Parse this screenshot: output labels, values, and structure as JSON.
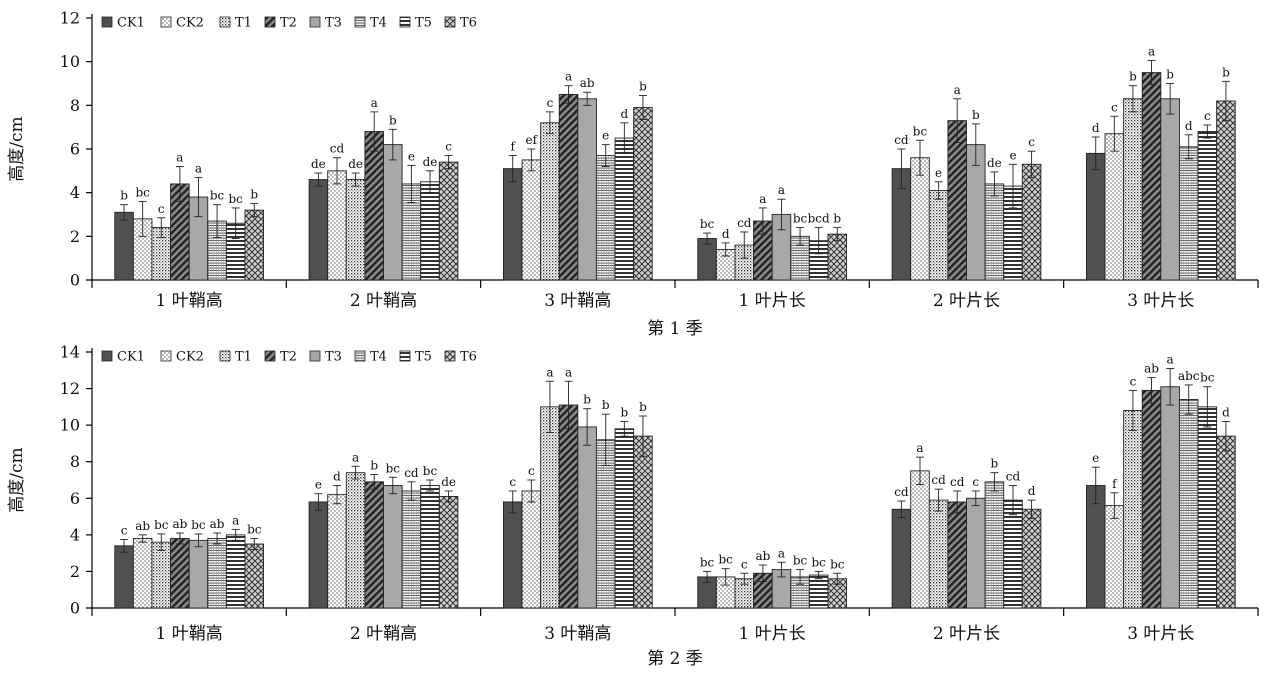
{
  "chart_data": [
    {
      "type": "bar",
      "xlabel": "第 1 季",
      "ylabel": "高度/cm",
      "ylim": [
        0,
        12
      ],
      "yticks": [
        0,
        2,
        4,
        6,
        8,
        10,
        12
      ],
      "legend": "top-left",
      "categories": [
        "1 叶鞘高",
        "2 叶鞘高",
        "3 叶鞘高",
        "1 叶片长",
        "2 叶片长",
        "3 叶片长"
      ],
      "series": [
        {
          "name": "CK1",
          "pattern": "solid-dark",
          "values": [
            3.1,
            4.6,
            5.1,
            1.9,
            5.1,
            5.8
          ],
          "errors": [
            0.35,
            0.3,
            0.6,
            0.25,
            0.9,
            0.75
          ],
          "labels": [
            "b",
            "de",
            "f",
            "bc",
            "cd",
            "d"
          ]
        },
        {
          "name": "CK2",
          "pattern": "dots",
          "values": [
            2.8,
            5.0,
            5.5,
            1.4,
            5.6,
            6.7
          ],
          "errors": [
            0.8,
            0.6,
            0.5,
            0.3,
            0.8,
            0.8
          ],
          "labels": [
            "bc",
            "cd",
            "ef",
            "d",
            "bc",
            "c"
          ]
        },
        {
          "name": "T1",
          "pattern": "dots-dense",
          "values": [
            2.4,
            4.6,
            7.2,
            1.6,
            4.1,
            8.3
          ],
          "errors": [
            0.45,
            0.3,
            0.5,
            0.6,
            0.4,
            0.6
          ],
          "labels": [
            "c",
            "de",
            "c",
            "cd",
            "e",
            "b"
          ]
        },
        {
          "name": "T2",
          "pattern": "diagonal",
          "values": [
            4.4,
            6.8,
            8.5,
            2.7,
            7.3,
            9.5
          ],
          "errors": [
            0.8,
            0.9,
            0.4,
            0.6,
            1.0,
            0.55
          ],
          "labels": [
            "a",
            "a",
            "a",
            "a",
            "a",
            "a"
          ]
        },
        {
          "name": "T3",
          "pattern": "solid-light",
          "values": [
            3.8,
            6.2,
            8.3,
            3.0,
            6.2,
            8.3
          ],
          "errors": [
            0.9,
            0.7,
            0.3,
            0.7,
            0.95,
            0.7
          ],
          "labels": [
            "a",
            "b",
            "ab",
            "a",
            "b",
            "b"
          ]
        },
        {
          "name": "T4",
          "pattern": "grid",
          "values": [
            2.7,
            4.4,
            5.7,
            2.0,
            4.4,
            6.1
          ],
          "errors": [
            0.75,
            0.85,
            0.5,
            0.4,
            0.55,
            0.55
          ],
          "labels": [
            "bc",
            "e",
            "e",
            "bc",
            "de",
            "d"
          ]
        },
        {
          "name": "T5",
          "pattern": "horizontal",
          "values": [
            2.6,
            4.5,
            6.5,
            1.8,
            4.3,
            6.8
          ],
          "errors": [
            0.7,
            0.5,
            0.7,
            0.6,
            1.0,
            0.3
          ],
          "labels": [
            "bc",
            "de",
            "d",
            "bcd",
            "e",
            "c"
          ]
        },
        {
          "name": "T6",
          "pattern": "cross",
          "values": [
            3.2,
            5.4,
            7.9,
            2.1,
            5.3,
            8.2
          ],
          "errors": [
            0.3,
            0.3,
            0.55,
            0.3,
            0.6,
            0.9
          ],
          "labels": [
            "b",
            "c",
            "b",
            "b",
            "c",
            "b"
          ]
        }
      ]
    },
    {
      "type": "bar",
      "xlabel": "第 2 季",
      "ylabel": "高度/cm",
      "ylim": [
        0,
        14
      ],
      "yticks": [
        0,
        2,
        4,
        6,
        8,
        10,
        12,
        14
      ],
      "legend": "top-left",
      "categories": [
        "1 叶鞘高",
        "2 叶鞘高",
        "3 叶鞘高",
        "1 叶片长",
        "2 叶片长",
        "3 叶片长"
      ],
      "series": [
        {
          "name": "CK1",
          "pattern": "solid-dark",
          "values": [
            3.4,
            5.8,
            5.8,
            1.7,
            5.4,
            6.7
          ],
          "errors": [
            0.35,
            0.45,
            0.6,
            0.3,
            0.45,
            1.0
          ],
          "labels": [
            "c",
            "e",
            "c",
            "bc",
            "cd",
            "e"
          ]
        },
        {
          "name": "CK2",
          "pattern": "dots",
          "values": [
            3.8,
            6.2,
            6.4,
            1.7,
            7.5,
            5.6
          ],
          "errors": [
            0.2,
            0.5,
            0.6,
            0.45,
            0.75,
            0.7
          ],
          "labels": [
            "ab",
            "d",
            "c",
            "bc",
            "a",
            "f"
          ]
        },
        {
          "name": "T1",
          "pattern": "dots-dense",
          "values": [
            3.6,
            7.4,
            11.0,
            1.6,
            5.9,
            10.8
          ],
          "errors": [
            0.45,
            0.35,
            1.4,
            0.3,
            0.6,
            1.1
          ],
          "labels": [
            "bc",
            "a",
            "a",
            "c",
            "cd",
            "c"
          ]
        },
        {
          "name": "T2",
          "pattern": "diagonal",
          "values": [
            3.8,
            6.9,
            11.1,
            1.9,
            5.8,
            11.9
          ],
          "errors": [
            0.3,
            0.4,
            1.3,
            0.45,
            0.6,
            0.7
          ],
          "labels": [
            "ab",
            "b",
            "a",
            "ab",
            "cd",
            "ab"
          ]
        },
        {
          "name": "T3",
          "pattern": "solid-light",
          "values": [
            3.7,
            6.7,
            9.9,
            2.1,
            6.0,
            12.1
          ],
          "errors": [
            0.35,
            0.45,
            1.0,
            0.4,
            0.4,
            1.0
          ],
          "labels": [
            "bc",
            "bc",
            "b",
            "a",
            "c",
            "a"
          ]
        },
        {
          "name": "T4",
          "pattern": "grid",
          "values": [
            3.8,
            6.4,
            9.2,
            1.7,
            6.9,
            11.4
          ],
          "errors": [
            0.3,
            0.5,
            1.4,
            0.4,
            0.5,
            0.8
          ],
          "labels": [
            "ab",
            "cd",
            "b",
            "bc",
            "b",
            "abc"
          ]
        },
        {
          "name": "T5",
          "pattern": "horizontal",
          "values": [
            4.0,
            6.7,
            9.8,
            1.8,
            5.9,
            11.0
          ],
          "errors": [
            0.3,
            0.3,
            0.4,
            0.2,
            0.8,
            1.1
          ],
          "labels": [
            "a",
            "bc",
            "b",
            "bc",
            "cd",
            "bc"
          ]
        },
        {
          "name": "T6",
          "pattern": "cross",
          "values": [
            3.5,
            6.1,
            9.4,
            1.6,
            5.4,
            9.4
          ],
          "errors": [
            0.3,
            0.3,
            1.1,
            0.3,
            0.5,
            0.8
          ],
          "labels": [
            "bc",
            "de",
            "b",
            "bc",
            "d",
            "d"
          ]
        }
      ]
    }
  ]
}
